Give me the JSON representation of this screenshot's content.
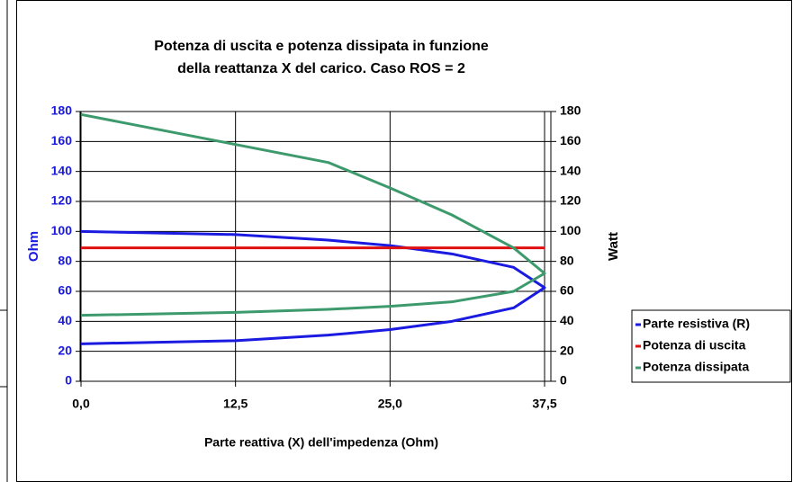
{
  "chart_data": {
    "type": "line",
    "title": [
      "Potenza di uscita e potenza dissipata in funzione",
      "della reattanza X del carico. Caso ROS = 2"
    ],
    "xlabel": "Parte reattiva (X) dell'impedenza (Ohm)",
    "ylabel": "Ohm",
    "y2label": "Watt",
    "xlim": [
      0,
      37.5
    ],
    "xticks": [
      {
        "value": 0,
        "label": "0,0"
      },
      {
        "value": 12.5,
        "label": "12,5"
      },
      {
        "value": 25,
        "label": "25,0"
      },
      {
        "value": 37.5,
        "label": "37,5"
      }
    ],
    "ylim": [
      0,
      180
    ],
    "yticks": [
      0,
      20,
      40,
      60,
      80,
      100,
      120,
      140,
      160,
      180
    ],
    "y2lim": [
      0,
      180
    ],
    "y2ticks": [
      0,
      20,
      40,
      60,
      80,
      100,
      120,
      140,
      160,
      180
    ],
    "grid": true,
    "legend": "right",
    "series": [
      {
        "name": "Parte resistiva (R)",
        "color": "#1a1ae0",
        "x": [
          0,
          12.5,
          20,
          25,
          30,
          35,
          37.5,
          35,
          30,
          25,
          20,
          12.5,
          0
        ],
        "values": [
          100,
          97.9,
          94.2,
          90.5,
          85,
          76,
          62.5,
          49,
          40,
          34.5,
          30.8,
          27.1,
          25
        ]
      },
      {
        "name": "Potenza di uscita",
        "color": "#e01010",
        "axis": "y2",
        "x": [
          0,
          37.5
        ],
        "values": [
          89,
          89
        ]
      },
      {
        "name": "Potenza dissipata",
        "color": "#3d9a6c",
        "axis": "y2",
        "x": [
          0,
          12.5,
          20,
          25,
          30,
          35,
          37.5,
          35,
          30,
          25,
          20,
          12.5,
          0
        ],
        "values": [
          178,
          158,
          146,
          129,
          111,
          89,
          72,
          60,
          53,
          50,
          48,
          46,
          44
        ]
      }
    ]
  }
}
